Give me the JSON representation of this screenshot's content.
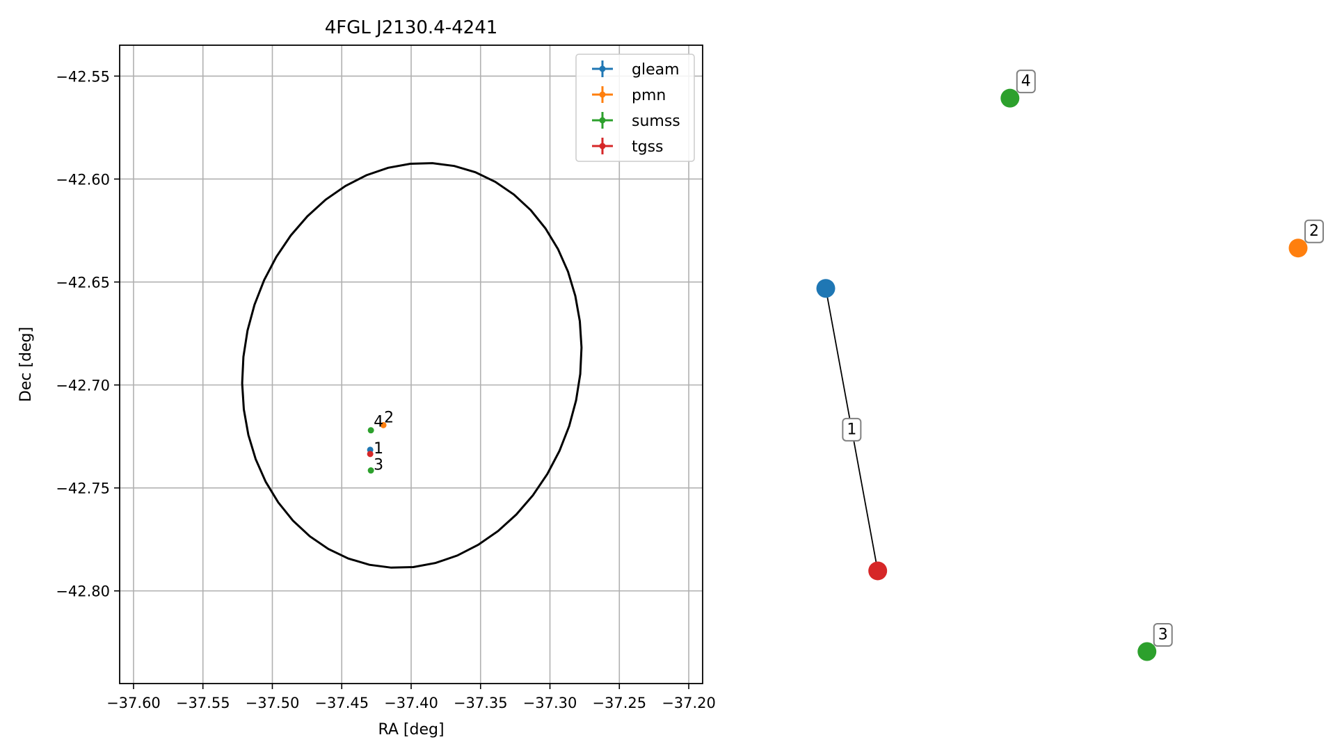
{
  "chart_data": [
    {
      "type": "scatter",
      "title": "4FGL J2130.4-4241",
      "xlabel": "RA [deg]",
      "ylabel": "Dec [deg]",
      "xlim": [
        -37.61,
        -37.19
      ],
      "ylim": [
        -42.845,
        -42.535
      ],
      "x_ticks": [
        -37.6,
        -37.55,
        -37.5,
        -37.45,
        -37.4,
        -37.35,
        -37.3,
        -37.25,
        -37.2
      ],
      "x_tick_labels": [
        "−37.60",
        "−37.55",
        "−37.50",
        "−37.45",
        "−37.40",
        "−37.35",
        "−37.30",
        "−37.25",
        "−37.20"
      ],
      "y_ticks": [
        -42.55,
        -42.6,
        -42.65,
        -42.7,
        -42.75,
        -42.8
      ],
      "y_tick_labels": [
        "−42.55",
        "−42.60",
        "−42.65",
        "−42.70",
        "−42.75",
        "−42.80"
      ],
      "grid": true,
      "legend_position": "top-right",
      "series": [
        {
          "name": "gleam",
          "color": "#1f77b4",
          "points": [
            {
              "x": -37.4295,
              "y": -42.7315
            }
          ]
        },
        {
          "name": "pmn",
          "color": "#ff7f0e",
          "points": [
            {
              "x": -37.42,
              "y": -42.7195
            }
          ]
        },
        {
          "name": "sumss",
          "color": "#2ca02c",
          "points": [
            {
              "x": -37.429,
              "y": -42.722
            },
            {
              "x": -37.429,
              "y": -42.7415
            }
          ]
        },
        {
          "name": "tgss",
          "color": "#d62728",
          "points": [
            {
              "x": -37.4295,
              "y": -42.7335
            }
          ]
        }
      ],
      "point_labels": [
        {
          "text": "4",
          "x": -37.426,
          "y": -42.7175
        },
        {
          "text": "2",
          "x": -37.4185,
          "y": -42.7155
        },
        {
          "text": "1",
          "x": -37.426,
          "y": -42.7305
        },
        {
          "text": "3",
          "x": -37.426,
          "y": -42.7385
        }
      ],
      "ellipse": {
        "center": [
          -37.3995,
          -42.6905
        ],
        "semi_axis_ra": 0.121,
        "semi_axis_dec": 0.099,
        "angle_deg": 12
      }
    },
    {
      "type": "scatter",
      "title": "",
      "nodes": [
        {
          "label": "",
          "color": "#1f77b4",
          "u": 0.0,
          "v": 0.63
        },
        {
          "label": "",
          "color": "#d62728",
          "u": 0.11,
          "v": 0.14
        },
        {
          "label": "4",
          "color": "#2ca02c",
          "u": 0.39,
          "v": 0.96
        },
        {
          "label": "2",
          "color": "#ff7f0e",
          "u": 1.0,
          "v": 0.7
        },
        {
          "label": "3",
          "color": "#2ca02c",
          "u": 0.68,
          "v": 0.0
        }
      ],
      "edges": [
        {
          "from": 0,
          "to": 1,
          "label": "1"
        }
      ]
    }
  ]
}
